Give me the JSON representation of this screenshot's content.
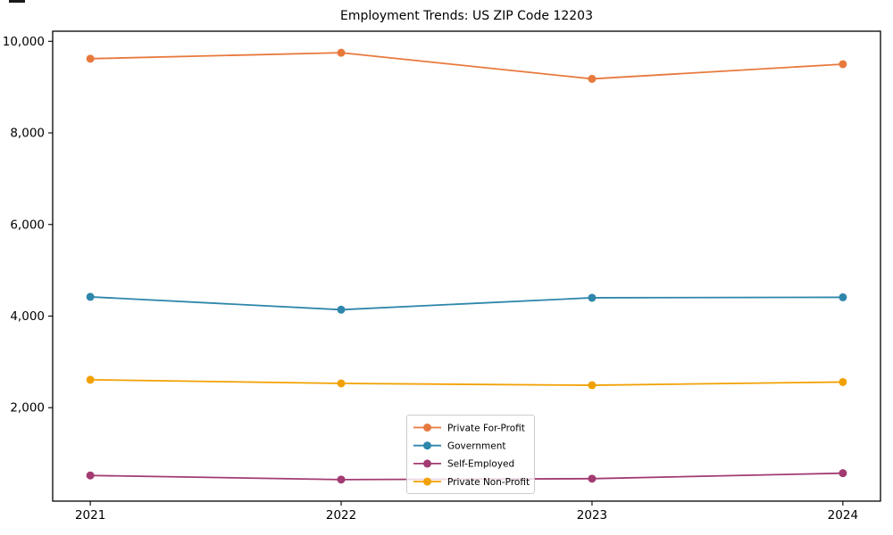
{
  "figure": {
    "background": "#ffffff",
    "axes_border_color": "#000000"
  },
  "chart_data": {
    "type": "line",
    "title": "Employment Trends: US ZIP Code 12203",
    "xlabel": "",
    "ylabel": "",
    "categories": [
      "2021",
      "2022",
      "2023",
      "2024"
    ],
    "x": [
      2021,
      2022,
      2023,
      2024
    ],
    "series": [
      {
        "name": "Private For-Profit",
        "color": "#E8793D",
        "values": [
          9620,
          9750,
          9180,
          9500
        ]
      },
      {
        "name": "Government",
        "color": "#2E86AB",
        "values": [
          4420,
          4140,
          4400,
          4410
        ]
      },
      {
        "name": "Self-Employed",
        "color": "#A23B72",
        "values": [
          520,
          430,
          450,
          570
        ]
      },
      {
        "name": "Private Non-Profit",
        "color": "#F2A104",
        "values": [
          2610,
          2530,
          2490,
          2560
        ]
      }
    ],
    "y_ticks": [
      2000,
      4000,
      6000,
      8000,
      10000
    ],
    "y_tick_labels": [
      "2,000",
      "4,000",
      "6,000",
      "8,000",
      "10,000"
    ],
    "xlim": [
      2020.85,
      2024.15
    ],
    "ylim": [
      -40,
      10220
    ],
    "grid": false,
    "marker": "circle",
    "marker_radius": 4.5,
    "line_width": 1.8,
    "legend": {
      "position": "lower-center-inside",
      "entries": [
        "Private For-Profit",
        "Government",
        "Self-Employed",
        "Private Non-Profit"
      ],
      "border_color": "#cccccc",
      "background": "#ffffff"
    }
  }
}
